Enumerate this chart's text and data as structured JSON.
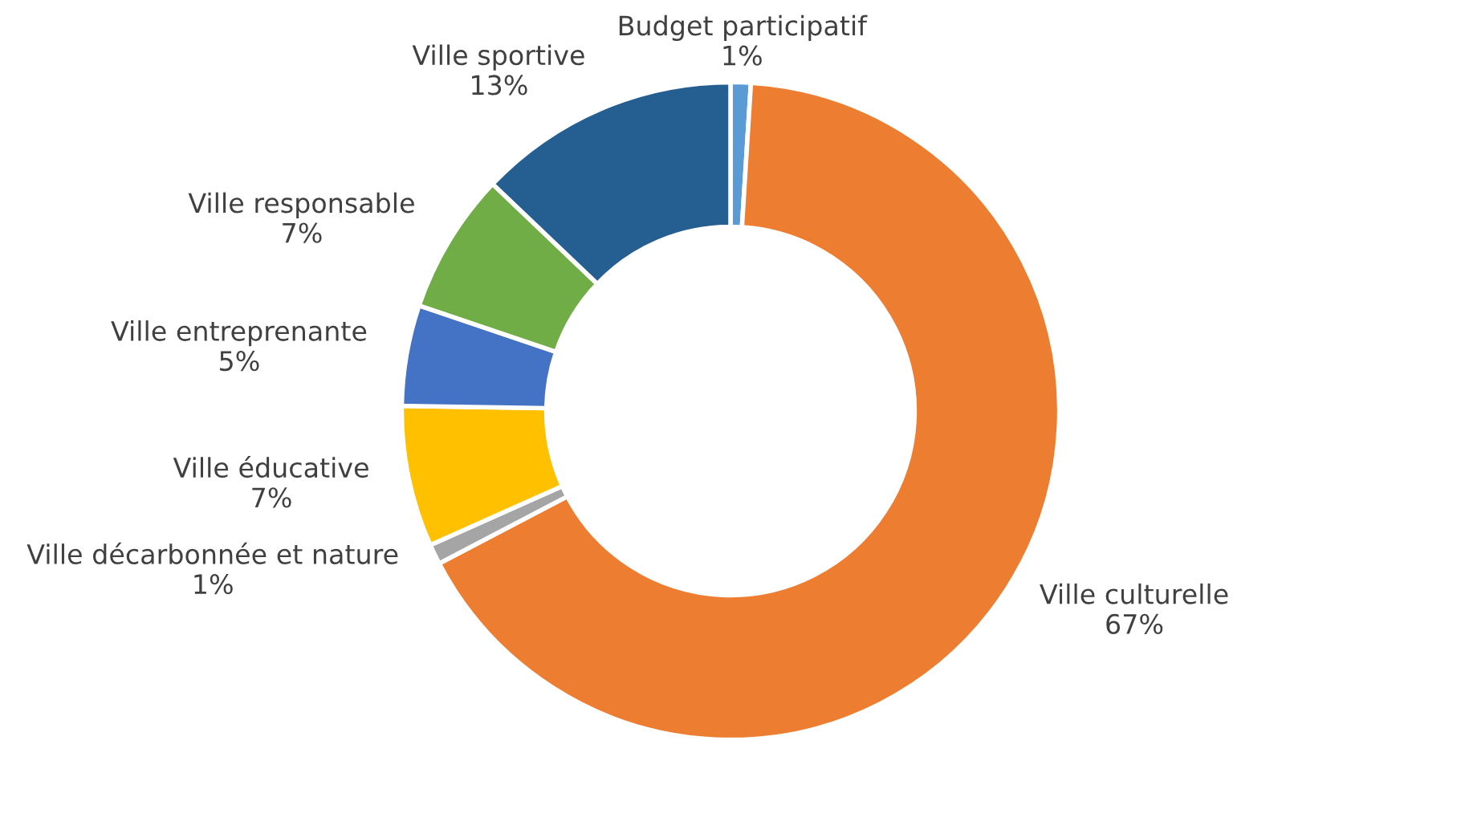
{
  "chart_data": {
    "type": "donut",
    "categories": [
      "Budget participatif",
      "Ville culturelle",
      "Ville décarbonnée et nature",
      "Ville éducative",
      "Ville entreprenante",
      "Ville responsable",
      "Ville sportive"
    ],
    "values": [
      1,
      67,
      1,
      7,
      5,
      7,
      13
    ],
    "value_labels": [
      "1%",
      "67%",
      "1%",
      "7%",
      "5%",
      "7%",
      "13%"
    ],
    "colors": [
      "#5b9bd5",
      "#ed7d31",
      "#a5a5a5",
      "#ffc000",
      "#4472c4",
      "#70ad47",
      "#255e91"
    ],
    "legend": false
  }
}
